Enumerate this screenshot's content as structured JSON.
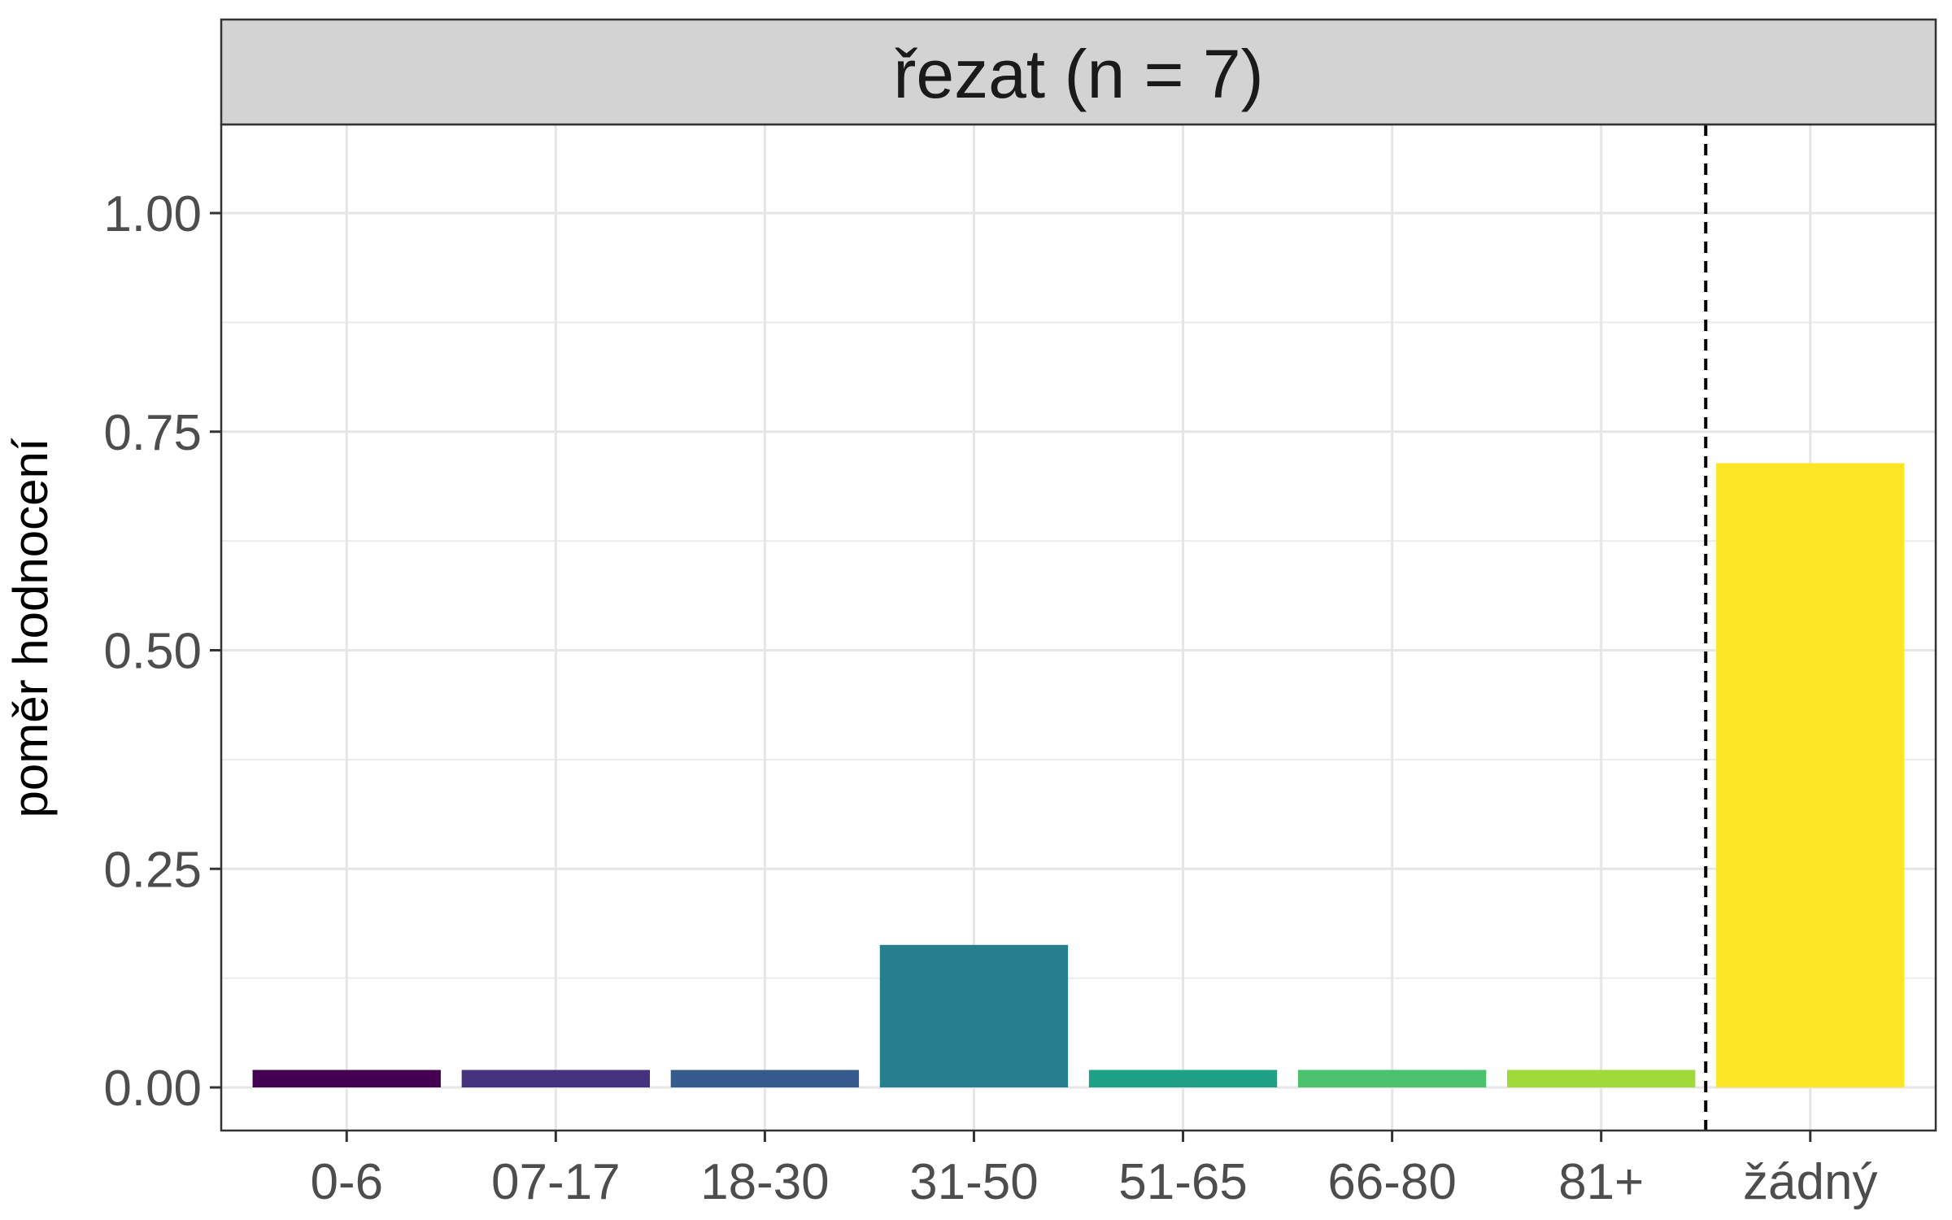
{
  "chart_data": {
    "type": "bar",
    "facet_title": "řezat (n = 7)",
    "categories": [
      "0-6",
      "07-17",
      "18-30",
      "31-50",
      "51-65",
      "66-80",
      "81+",
      "žádný"
    ],
    "values": [
      0.02,
      0.02,
      0.02,
      0.163,
      0.02,
      0.02,
      0.02,
      0.714
    ],
    "colors": [
      "#440154",
      "#46337E",
      "#365C8D",
      "#277F8E",
      "#1FA187",
      "#4AC16D",
      "#9FDA3A",
      "#FDE725"
    ],
    "xlabel": "",
    "ylabel": "poměr hodnocení",
    "ylim": [
      -0.05,
      1.1
    ],
    "yticks": [
      0.0,
      0.25,
      0.5,
      0.75,
      1.0
    ],
    "ytick_labels": [
      "0.00",
      "0.25",
      "0.50",
      "0.75",
      "1.00"
    ],
    "reference_line": {
      "between_categories": [
        "81+",
        "žádný"
      ],
      "style": "dashed"
    },
    "grid": true,
    "legend": "none"
  }
}
